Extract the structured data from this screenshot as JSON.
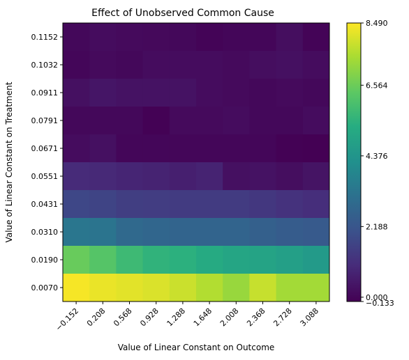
{
  "chart_data": {
    "type": "heatmap",
    "title": "Effect of Unobserved Common Cause",
    "xlabel": "Value of Linear Constant on Outcome",
    "ylabel": "Value of Linear Constant on Treatment",
    "x_ticks": [
      "−0.152",
      "0.208",
      "0.568",
      "0.928",
      "1.288",
      "1.648",
      "2.008",
      "2.368",
      "2.728",
      "3.088"
    ],
    "y_ticks_top_to_bottom": [
      "0.1152",
      "0.1032",
      "0.0911",
      "0.0791",
      "0.0671",
      "0.0551",
      "0.0431",
      "0.0310",
      "0.0190",
      "0.0070"
    ],
    "values_top_to_bottom": [
      [
        0.05,
        0.15,
        0.1,
        0.08,
        0.05,
        -0.05,
        0.0,
        0.0,
        0.2,
        -0.05
      ],
      [
        0.0,
        0.1,
        0.05,
        0.15,
        0.15,
        0.15,
        0.1,
        0.2,
        0.25,
        0.15
      ],
      [
        0.25,
        0.4,
        0.3,
        0.3,
        0.3,
        0.15,
        0.1,
        0.05,
        0.1,
        0.05
      ],
      [
        0.05,
        0.05,
        0.05,
        -0.1,
        0.1,
        0.1,
        0.15,
        0.05,
        0.05,
        0.15
      ],
      [
        0.15,
        0.25,
        0.0,
        0.0,
        0.0,
        0.0,
        0.0,
        0.0,
        -0.1,
        -0.15
      ],
      [
        0.95,
        0.9,
        0.8,
        0.75,
        0.65,
        0.75,
        0.25,
        0.3,
        0.2,
        0.35
      ],
      [
        1.75,
        1.65,
        1.5,
        1.45,
        1.4,
        1.4,
        1.4,
        1.3,
        1.15,
        1.05
      ],
      [
        3.3,
        3.25,
        2.85,
        2.75,
        2.7,
        2.7,
        2.7,
        2.55,
        2.4,
        2.35
      ],
      [
        6.5,
        6.2,
        5.75,
        5.5,
        5.4,
        5.2,
        5.0,
        4.9,
        4.75,
        4.55
      ],
      [
        8.4,
        8.25,
        8.15,
        8.05,
        7.85,
        7.55,
        7.2,
        7.8,
        7.35,
        7.35
      ]
    ],
    "colormap": "viridis",
    "colorbar": {
      "min": -0.133,
      "max": 8.49,
      "ticks": [
        "0.000",
        "2.188",
        "4.376",
        "6.564",
        "8.490"
      ],
      "tick_values": [
        0.0,
        2.188,
        4.376,
        6.564,
        8.49
      ],
      "min_label": "−0.133"
    },
    "grid": false
  }
}
